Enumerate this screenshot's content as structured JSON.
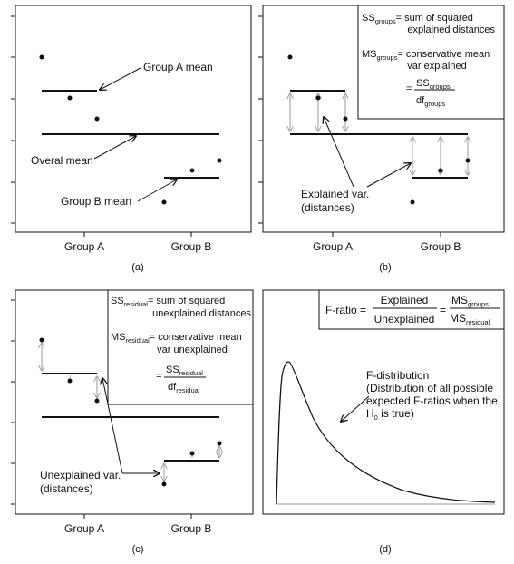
{
  "panels": {
    "a": {
      "caption": "(a)",
      "labels": {
        "group_a_mean": "Group A mean",
        "overall_mean": "Overal mean",
        "group_b_mean": "Group B mean"
      },
      "x_ticks": [
        "Group A",
        "Group B"
      ]
    },
    "b": {
      "caption": "(b)",
      "box": {
        "ss_main": "SS",
        "ss_sub": "groups",
        "ss_def_1": "= sum of squared",
        "ss_def_2": "explained distances",
        "ms_main": "MS",
        "ms_sub": "groups",
        "ms_def_1": "= conservative mean",
        "ms_def_2": "var explained",
        "eq": "=",
        "frac_num_main": "SS",
        "frac_num_sub": "groups",
        "frac_den_main": "df",
        "frac_den_sub": "groups"
      },
      "explained_label_1": "Explained var.",
      "explained_label_2": "(distances)",
      "x_ticks": [
        "Group A",
        "Group B"
      ]
    },
    "c": {
      "caption": "(c)",
      "box": {
        "ss_main": "SS",
        "ss_sub": "residual",
        "ss_def_1": "= sum of squared",
        "ss_def_2": "unexplained distances",
        "ms_main": "MS",
        "ms_sub": "residual",
        "ms_def_1": "= conservative mean",
        "ms_def_2": "var unexplained",
        "eq": "=",
        "frac_num_main": "SS",
        "frac_num_sub": "residual",
        "frac_den_main": "df",
        "frac_den_sub": "residual"
      },
      "unexplained_label_1": "Unexplained var.",
      "unexplained_label_2": "(distances)",
      "x_ticks": [
        "Group A",
        "Group B"
      ]
    },
    "d": {
      "caption": "(d)",
      "formula": {
        "lhs": "F-ratio =",
        "num": "Explained",
        "den": "Unexplained",
        "eq": "=",
        "num2_main": "MS",
        "num2_sub": "groups",
        "den2_main": "MS",
        "den2_sub": "residual"
      },
      "fdist_1": "F-distribution",
      "fdist_2": "(Distribution of all possible",
      "fdist_3": "expected F-ratios when the",
      "fdist_4_main": "H",
      "fdist_4_sub": "0",
      "fdist_4_rest": " is true)"
    }
  }
}
